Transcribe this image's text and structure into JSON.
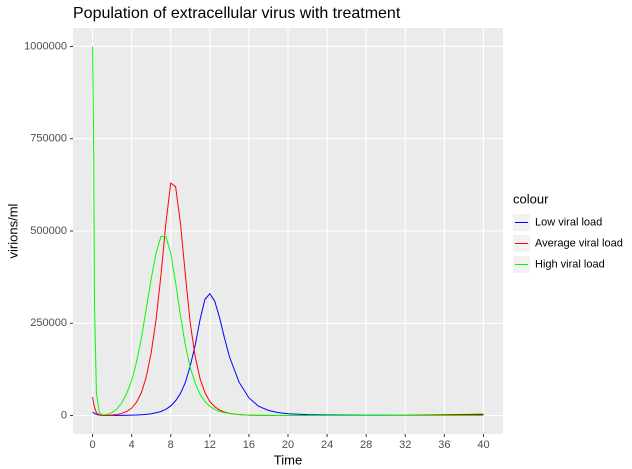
{
  "chart_data": {
    "type": "line",
    "title": "Population of extracellular virus with treatment",
    "x_label": "Time",
    "y_label": "virions/ml",
    "legend_title": "colour",
    "x": [
      0,
      0.1,
      0.2,
      0.4,
      0.7,
      1,
      1.5,
      2,
      2.5,
      3,
      3.5,
      4,
      4.5,
      5,
      5.5,
      6,
      6.5,
      7,
      7.5,
      8,
      8.5,
      9,
      9.5,
      10,
      10.5,
      11,
      11.5,
      12,
      12.5,
      13,
      13.5,
      14,
      15,
      16,
      17,
      18,
      19,
      20,
      22,
      24,
      28,
      32,
      36,
      40
    ],
    "series": [
      {
        "name": "Low viral load",
        "color": "#0000ff",
        "values": [
          10000,
          8000,
          6000,
          3000,
          1000,
          500,
          300,
          300,
          400,
          500,
          700,
          1000,
          1500,
          2200,
          3300,
          5000,
          7500,
          11000,
          17000,
          26000,
          40000,
          60000,
          90000,
          135000,
          190000,
          260000,
          315000,
          330000,
          310000,
          265000,
          210000,
          160000,
          90000,
          48000,
          25000,
          14000,
          8000,
          5000,
          2500,
          1500,
          800,
          600,
          1000,
          1500
        ]
      },
      {
        "name": "Average viral load",
        "color": "#ff0000",
        "values": [
          50000,
          35000,
          22000,
          8000,
          1500,
          500,
          600,
          1500,
          3000,
          6000,
          11000,
          20000,
          36000,
          62000,
          105000,
          170000,
          260000,
          380000,
          520000,
          630000,
          620000,
          520000,
          380000,
          250000,
          160000,
          100000,
          62000,
          38000,
          24000,
          15000,
          9500,
          6000,
          2500,
          1000,
          400,
          150,
          60,
          25,
          5,
          0,
          0,
          500,
          2000,
          4000
        ]
      },
      {
        "name": "High viral load",
        "color": "#00ff00",
        "values": [
          1000000,
          780000,
          300000,
          60000,
          8000,
          2000,
          3000,
          8000,
          18000,
          35000,
          60000,
          95000,
          145000,
          210000,
          290000,
          370000,
          440000,
          485000,
          485000,
          440000,
          360000,
          270000,
          190000,
          130000,
          88000,
          58000,
          38000,
          25000,
          17000,
          11000,
          8000,
          5500,
          2500,
          1200,
          600,
          300,
          150,
          80,
          20,
          5,
          0,
          0,
          0,
          0
        ]
      }
    ],
    "xlim": [
      -2,
      42
    ],
    "xticks": [
      0,
      4,
      8,
      12,
      16,
      20,
      24,
      28,
      32,
      36,
      40
    ],
    "ylim": [
      -50000,
      1050000
    ],
    "yticks": [
      0,
      250000,
      500000,
      750000,
      1000000
    ],
    "grid": true,
    "legend": "right"
  }
}
